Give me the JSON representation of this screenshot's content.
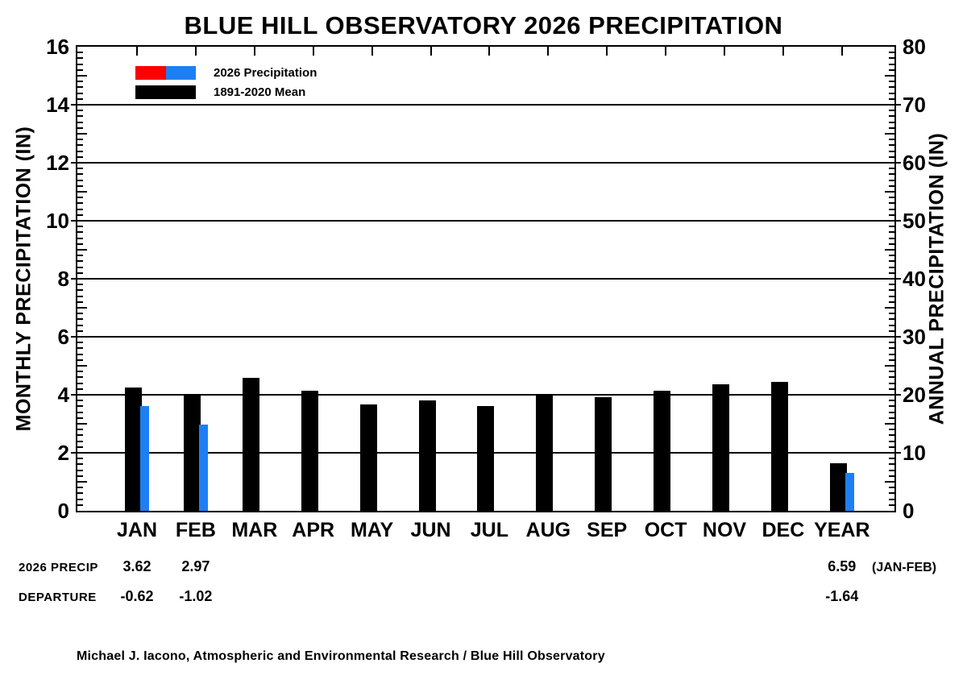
{
  "title": "BLUE HILL OBSERVATORY 2026 PRECIPITATION",
  "chart_data": {
    "type": "bar",
    "title": "BLUE HILL OBSERVATORY 2026 PRECIPITATION",
    "categories": [
      "JAN",
      "FEB",
      "MAR",
      "APR",
      "MAY",
      "JUN",
      "JUL",
      "AUG",
      "SEP",
      "OCT",
      "NOV",
      "DEC",
      "YEAR"
    ],
    "series": [
      {
        "name": "1891-2020 Mean",
        "color": "#000000",
        "values_monthly_axis_units": [
          4.24,
          3.99,
          4.58,
          4.13,
          3.66,
          3.8,
          3.61,
          3.99,
          3.93,
          4.14,
          4.37,
          4.45,
          1.646
        ],
        "year_bar_on_annual_axis": 8.23
      },
      {
        "name": "2026 Precipitation",
        "color": "#1E7FF5",
        "values_monthly_axis_units": [
          3.62,
          2.97,
          null,
          null,
          null,
          null,
          null,
          null,
          null,
          null,
          null,
          null,
          1.318
        ],
        "year_bar_on_annual_axis": 6.59
      }
    ],
    "left_axis": {
      "label": "MONTHLY PRECIPITATION (IN)",
      "min": 0,
      "max": 16,
      "major_ticks": [
        0,
        2,
        4,
        6,
        8,
        10,
        12,
        14,
        16
      ]
    },
    "right_axis": {
      "label": "ANNUAL PRECIPITATION (IN)",
      "min": 0,
      "max": 80,
      "major_ticks": [
        0,
        10,
        20,
        30,
        40,
        50,
        60,
        70,
        80
      ]
    },
    "grid": "horizontal lines at every major left-axis tick (2 in)",
    "legend_position": "top-left inside plot"
  },
  "legend": {
    "items": [
      {
        "label": "2026 Precipitation",
        "swatch_colors": [
          "#FF0000",
          "#1E7FF5"
        ]
      },
      {
        "label": "1891-2020 Mean",
        "swatch_colors": [
          "#000000"
        ]
      }
    ]
  },
  "stats_rows": [
    {
      "label": "2026 PRECIP",
      "values": {
        "JAN": "3.62",
        "FEB": "2.97",
        "YEAR": "6.59"
      },
      "note": "(JAN-FEB)"
    },
    {
      "label": "DEPARTURE",
      "values": {
        "JAN": "-0.62",
        "FEB": "-1.02",
        "YEAR": "-1.64"
      },
      "note": ""
    }
  ],
  "footer": "Michael J. Iacono, Atmospheric and Environmental Research / Blue Hill Observatory",
  "colors": {
    "mean_bar": "#000000",
    "precip_2026_bar": "#1E7FF5",
    "legend_red": "#FF0000",
    "axis": "#000000",
    "background": "#FFFFFF"
  }
}
